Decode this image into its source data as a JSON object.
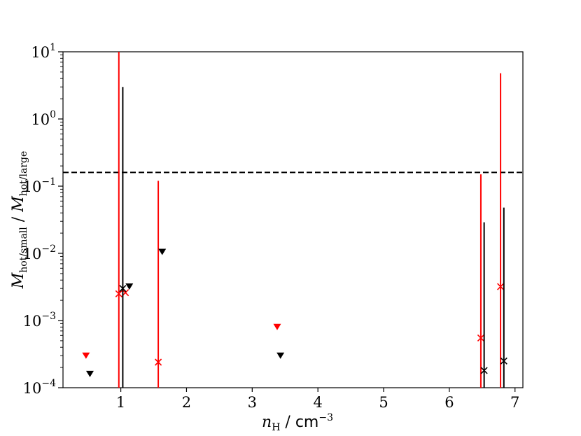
{
  "chart_data": {
    "type": "scatter",
    "title": "",
    "xlabel": {
      "var": "n",
      "sub": "H",
      "sep": " / ",
      "unit": "cm",
      "exp": "−3"
    },
    "ylabel": {
      "var1": "M",
      "sub1": "hot/small",
      "sep": " / ",
      "var2": "M",
      "sub2": "hot/large"
    },
    "xlim": [
      0.12,
      7.12
    ],
    "ylim": [
      0.0001,
      10
    ],
    "yscale": "log",
    "grid": false,
    "x_ticks": [
      {
        "value": 1,
        "label": "1"
      },
      {
        "value": 2,
        "label": "2"
      },
      {
        "value": 3,
        "label": "3"
      },
      {
        "value": 4,
        "label": "4"
      },
      {
        "value": 5,
        "label": "5"
      },
      {
        "value": 6,
        "label": "6"
      },
      {
        "value": 7,
        "label": "7"
      }
    ],
    "y_ticks": [
      {
        "value": 0.0001,
        "base": "10",
        "exp": "−4"
      },
      {
        "value": 0.001,
        "base": "10",
        "exp": "−3"
      },
      {
        "value": 0.01,
        "base": "10",
        "exp": "−2"
      },
      {
        "value": 0.1,
        "base": "10",
        "exp": "−1"
      },
      {
        "value": 1,
        "base": "10",
        "exp": "0"
      },
      {
        "value": 10,
        "base": "10",
        "exp": "1"
      }
    ],
    "reference_line": {
      "y": 0.16,
      "style": "dashed",
      "color": "#000000"
    },
    "series": [
      {
        "color": "#ff0000",
        "upper_limits": [
          {
            "x": 0.47,
            "y": 0.0003
          },
          {
            "x": 3.38,
            "y": 0.0008
          }
        ],
        "points": [
          {
            "x": 0.97,
            "y": 0.0025,
            "err_low": 0.0001,
            "err_high": 10
          },
          {
            "x": 1.07,
            "y": 0.0026,
            "err_low": null,
            "err_high": null
          },
          {
            "x": 1.57,
            "y": 0.00024,
            "err_low": 0.0001,
            "err_high": 0.12
          },
          {
            "x": 6.48,
            "y": 0.00055,
            "err_low": 0.0001,
            "err_high": 0.15
          },
          {
            "x": 6.78,
            "y": 0.0032,
            "err_low": 0.0001,
            "err_high": 4.8
          }
        ]
      },
      {
        "color": "#000000",
        "upper_limits": [
          {
            "x": 0.53,
            "y": 0.00016
          },
          {
            "x": 1.13,
            "y": 0.0032
          },
          {
            "x": 1.63,
            "y": 0.0105
          },
          {
            "x": 3.43,
            "y": 0.0003
          }
        ],
        "points": [
          {
            "x": 1.03,
            "y": 0.003,
            "err_low": 0.0001,
            "err_high": 3.0
          },
          {
            "x": 6.53,
            "y": 0.00018,
            "err_low": 0.0001,
            "err_high": 0.029
          },
          {
            "x": 6.83,
            "y": 0.00025,
            "err_low": 0.0001,
            "err_high": 0.048
          }
        ]
      }
    ]
  }
}
